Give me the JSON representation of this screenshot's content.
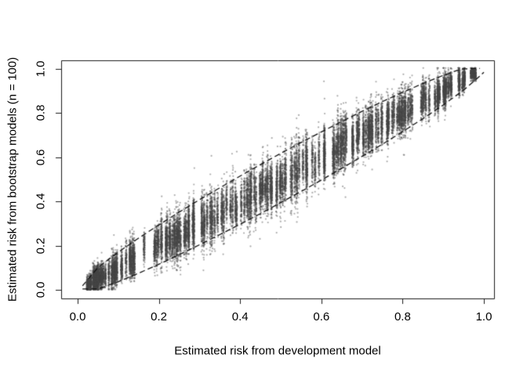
{
  "figure": {
    "background": "#ffffff",
    "frame_color": "#1a1a1a",
    "tick_color": "#1a1a1a",
    "text_color": "#000000"
  },
  "chart_data": {
    "type": "scatter",
    "title": "",
    "xlabel": "Estimated risk from development model",
    "ylabel": "Estimated risk from bootstrap models (n = 100)",
    "xlim": [
      0,
      1
    ],
    "ylim": [
      0,
      1
    ],
    "grid": false,
    "frame": true,
    "legend": null,
    "x_ticks": {
      "values": [
        0,
        0.2,
        0.4,
        0.6,
        0.8,
        1.0
      ],
      "labels": [
        "0.0",
        "0.2",
        "0.4",
        "0.6",
        "0.8",
        "1.0"
      ]
    },
    "y_ticks": {
      "values": [
        0,
        0.2,
        0.4,
        0.6,
        0.8,
        1.0
      ],
      "labels": [
        "0.0",
        "0.2",
        "0.4",
        "0.6",
        "0.8",
        "1.0"
      ]
    },
    "point_style": {
      "color_rgb": [
        70,
        70,
        70
      ],
      "alpha": 0.45,
      "radius": 1.1
    },
    "envelope_style": {
      "color": "#111111",
      "dash": [
        7,
        4
      ],
      "width": 1.3
    },
    "series": [
      {
        "name": "bootstrap-risk-points",
        "kind": "dense-scatter",
        "description": "Per-individual columns of 100 bootstrap risk estimates plotted against the development-model risk; dense gray cloud along the diagonal from (0.01,0.0) to (0.99,1.0) with vertical striping and spread proportional to sqrt(p(1-p))",
        "generator": {
          "seed": 911,
          "n_columns": 195,
          "points_per_column": 110,
          "x_min": 0.015,
          "x_max": 0.955,
          "extra_low_columns": 12,
          "low_range": [
            0.015,
            0.1
          ],
          "column_bias_sd": 0.035,
          "spread_min": 0.085,
          "spread_span": 0.05,
          "upper_skew": 1.08,
          "outlier_prob": 0.012,
          "outlier_mult": 1.9,
          "column_half_width": 0.0016,
          "y_clamp": [
            0.002,
            1.004
          ],
          "end_cluster": {
            "x": 0.974,
            "half_width": 0.007,
            "y_center": 0.977,
            "sd": 0.014,
            "n": 380,
            "y_min": 0.945
          }
        }
      },
      {
        "name": "upper-envelope",
        "kind": "dashed-line",
        "x": [
          0.012,
          0.05,
          0.1,
          0.15,
          0.2,
          0.25,
          0.3,
          0.35,
          0.4,
          0.45,
          0.5,
          0.55,
          0.6,
          0.65,
          0.7,
          0.75,
          0.8,
          0.85,
          0.9,
          0.945,
          0.99
        ],
        "y": [
          0.018,
          0.101,
          0.171,
          0.234,
          0.294,
          0.352,
          0.408,
          0.462,
          0.515,
          0.567,
          0.618,
          0.667,
          0.715,
          0.762,
          0.808,
          0.852,
          0.894,
          0.934,
          0.971,
          1.0,
          1.002
        ]
      },
      {
        "name": "lower-envelope",
        "kind": "dashed-line",
        "x": [
          0.012,
          0.05,
          0.1,
          0.15,
          0.2,
          0.25,
          0.3,
          0.35,
          0.4,
          0.45,
          0.5,
          0.55,
          0.6,
          0.65,
          0.7,
          0.75,
          0.8,
          0.85,
          0.9,
          0.95,
          0.98,
          1.0
        ],
        "y": [
          0.004,
          0.004,
          0.037,
          0.075,
          0.116,
          0.159,
          0.204,
          0.25,
          0.297,
          0.345,
          0.395,
          0.445,
          0.497,
          0.55,
          0.604,
          0.659,
          0.716,
          0.775,
          0.837,
          0.904,
          0.951,
          0.985
        ]
      }
    ]
  }
}
